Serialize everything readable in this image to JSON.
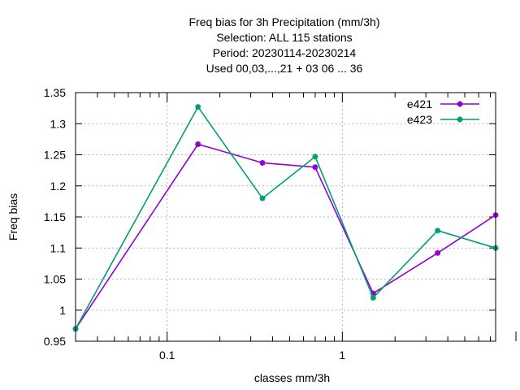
{
  "chart_data": {
    "type": "line",
    "title_lines": [
      "Freq bias  for 3h Precipitation (mm/3h)",
      "Selection: ALL     115 stations",
      "Period: 20230114-20230214",
      "Used  00,03,...,21  + 03 06 ... 36"
    ],
    "xlabel": "classes mm/3h",
    "ylabel": "Freq bias",
    "x_scale": "log",
    "xlim": [
      0.03,
      7.5
    ],
    "ylim": [
      0.95,
      1.35
    ],
    "x_ticks": [
      {
        "v": 0.1,
        "label": "0.1"
      },
      {
        "v": 1,
        "label": "1"
      }
    ],
    "y_ticks": [
      {
        "v": 0.95,
        "label": "0.95"
      },
      {
        "v": 1.0,
        "label": "1"
      },
      {
        "v": 1.05,
        "label": "1.05"
      },
      {
        "v": 1.1,
        "label": "1.1"
      },
      {
        "v": 1.15,
        "label": "1.15"
      },
      {
        "v": 1.2,
        "label": "1.2"
      },
      {
        "v": 1.25,
        "label": "1.25"
      },
      {
        "v": 1.3,
        "label": "1.3"
      },
      {
        "v": 1.35,
        "label": "1.35"
      }
    ],
    "grid": true,
    "legend_position": "top-right",
    "series": [
      {
        "name": "e421",
        "color": "#9400d3",
        "x": [
          0.03,
          0.15,
          0.35,
          0.7,
          1.5,
          3.5,
          7.5
        ],
        "y": [
          0.97,
          1.267,
          1.237,
          1.23,
          1.027,
          1.092,
          1.153
        ]
      },
      {
        "name": "e423",
        "color": "#009e73",
        "x": [
          0.03,
          0.15,
          0.35,
          0.7,
          1.5,
          3.5,
          7.5
        ],
        "y": [
          0.97,
          1.327,
          1.18,
          1.247,
          1.02,
          1.128,
          1.1
        ]
      }
    ]
  }
}
